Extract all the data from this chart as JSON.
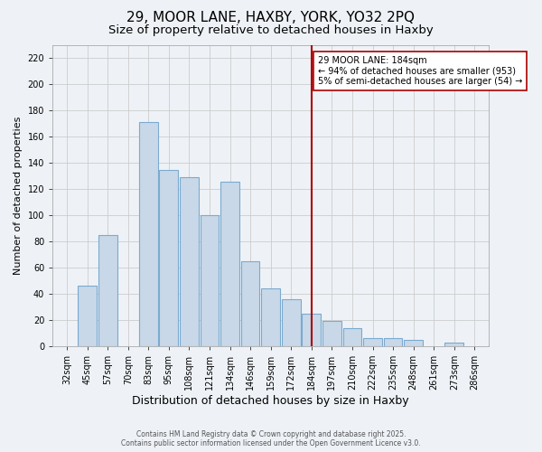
{
  "title": "29, MOOR LANE, HAXBY, YORK, YO32 2PQ",
  "subtitle": "Size of property relative to detached houses in Haxby",
  "xlabel": "Distribution of detached houses by size in Haxby",
  "ylabel": "Number of detached properties",
  "bins": [
    "32sqm",
    "45sqm",
    "57sqm",
    "70sqm",
    "83sqm",
    "95sqm",
    "108sqm",
    "121sqm",
    "134sqm",
    "146sqm",
    "159sqm",
    "172sqm",
    "184sqm",
    "197sqm",
    "210sqm",
    "222sqm",
    "235sqm",
    "248sqm",
    "261sqm",
    "273sqm",
    "286sqm"
  ],
  "values": [
    0,
    46,
    85,
    0,
    171,
    135,
    129,
    100,
    126,
    65,
    44,
    36,
    25,
    19,
    14,
    6,
    6,
    5,
    0,
    3,
    0
  ],
  "bar_color": "#c8d8e8",
  "bar_edge_color": "#7aaad0",
  "grid_color": "#cccccc",
  "background_color": "#eef2f7",
  "vline_x": 12,
  "vline_color": "#aa0000",
  "annotation_title": "29 MOOR LANE: 184sqm",
  "annotation_line1": "← 94% of detached houses are smaller (953)",
  "annotation_line2": "5% of semi-detached houses are larger (54) →",
  "annotation_box_color": "#ffffff",
  "annotation_border_color": "#aa0000",
  "footer1": "Contains HM Land Registry data © Crown copyright and database right 2025.",
  "footer2": "Contains public sector information licensed under the Open Government Licence v3.0.",
  "ylim": [
    0,
    230
  ],
  "title_fontsize": 11,
  "subtitle_fontsize": 9.5,
  "tick_fontsize": 7,
  "ylabel_fontsize": 8,
  "xlabel_fontsize": 9,
  "annotation_fontsize": 7,
  "footer_fontsize": 5.5
}
